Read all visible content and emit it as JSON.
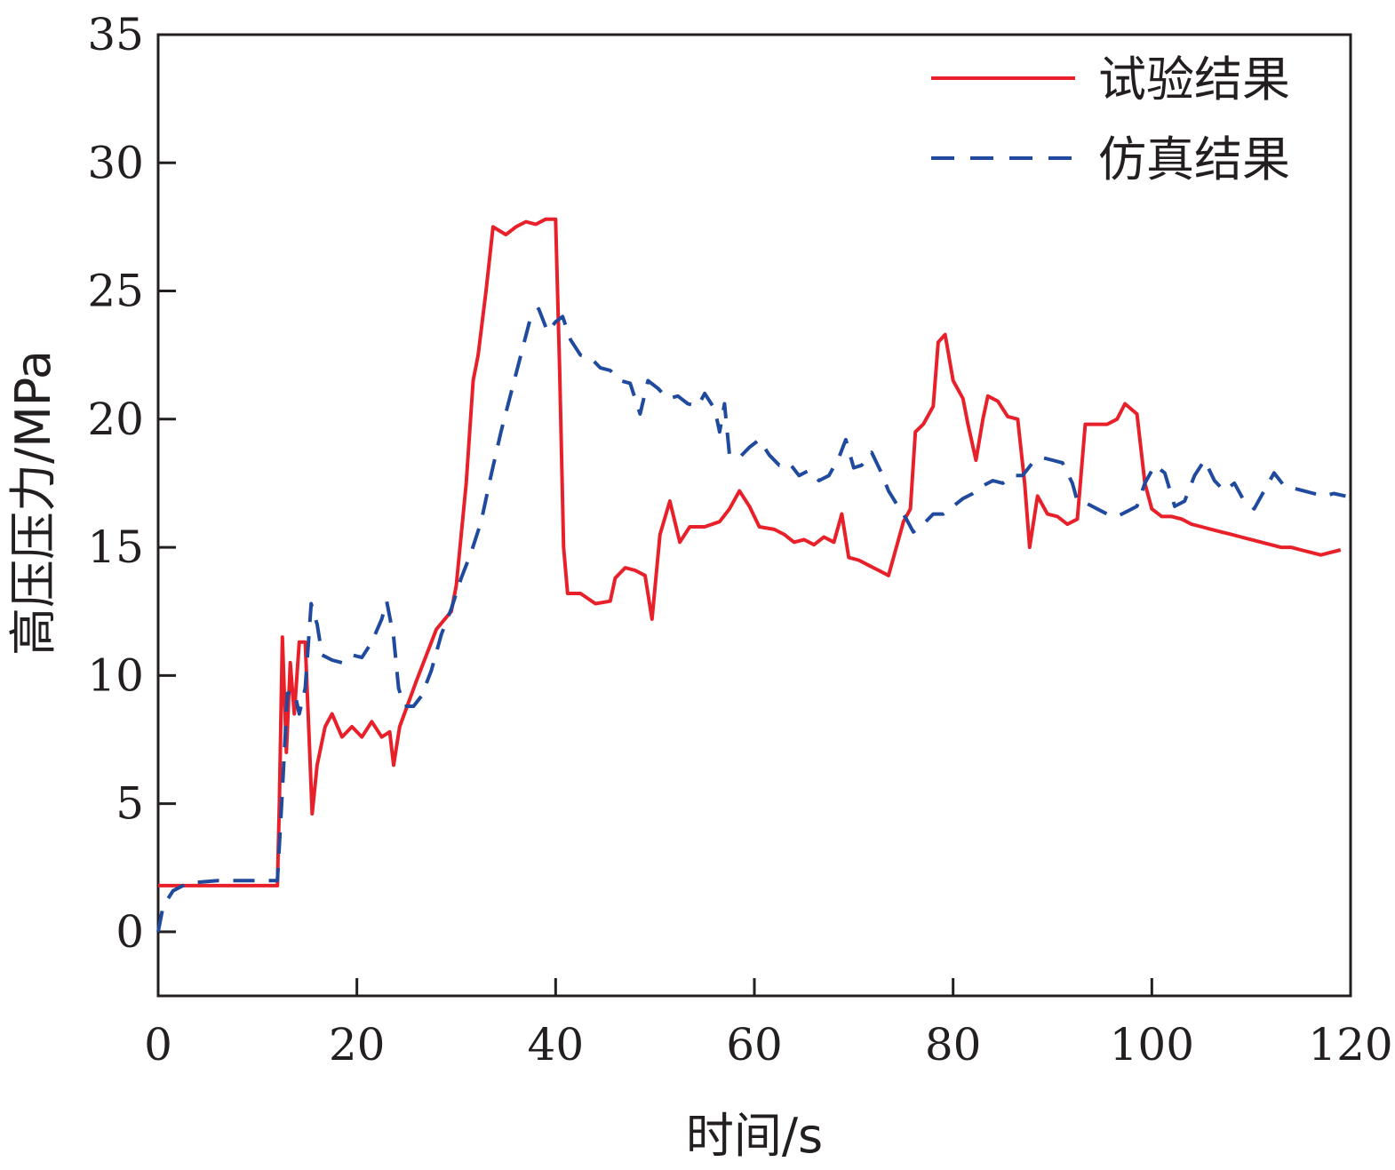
{
  "chart_data": {
    "type": "line",
    "title": "",
    "xlabel": "时间/s",
    "ylabel": "高压压力/MPa",
    "xlim": [
      0,
      120
    ],
    "ylim": [
      -2.5,
      35
    ],
    "xticks": [
      0,
      20,
      40,
      60,
      80,
      100,
      120
    ],
    "yticks": [
      0,
      5,
      10,
      15,
      20,
      25,
      30,
      35
    ],
    "grid": false,
    "legend_position": "top-right",
    "series": [
      {
        "name": "试验结果",
        "color": "#e8202a",
        "style": "solid",
        "points": [
          [
            0,
            1.8
          ],
          [
            6,
            1.8
          ],
          [
            12,
            1.8
          ],
          [
            12.2,
            5
          ],
          [
            12.5,
            11.5
          ],
          [
            12.9,
            7
          ],
          [
            13.3,
            10.5
          ],
          [
            13.7,
            8.5
          ],
          [
            14.2,
            11.3
          ],
          [
            14.8,
            11.3
          ],
          [
            15.2,
            7.5
          ],
          [
            15.5,
            4.6
          ],
          [
            16,
            6.5
          ],
          [
            16.8,
            8
          ],
          [
            17.5,
            8.5
          ],
          [
            18.5,
            7.6
          ],
          [
            19.5,
            8
          ],
          [
            20.5,
            7.6
          ],
          [
            21.5,
            8.2
          ],
          [
            22.5,
            7.6
          ],
          [
            23.3,
            7.8
          ],
          [
            23.7,
            6.5
          ],
          [
            24.3,
            8
          ],
          [
            26,
            9.8
          ],
          [
            28,
            11.8
          ],
          [
            29.5,
            12.5
          ],
          [
            30,
            13.5
          ],
          [
            31,
            17.5
          ],
          [
            31.7,
            21.5
          ],
          [
            32.2,
            22.5
          ],
          [
            33,
            25
          ],
          [
            33.7,
            27.5
          ],
          [
            35,
            27.2
          ],
          [
            36,
            27.5
          ],
          [
            37,
            27.7
          ],
          [
            38,
            27.6
          ],
          [
            39,
            27.8
          ],
          [
            40,
            27.8
          ],
          [
            40.4,
            22
          ],
          [
            40.8,
            15
          ],
          [
            41.2,
            13.2
          ],
          [
            42.5,
            13.2
          ],
          [
            44,
            12.8
          ],
          [
            45.5,
            12.9
          ],
          [
            46,
            13.8
          ],
          [
            47,
            14.2
          ],
          [
            48,
            14.1
          ],
          [
            49,
            13.9
          ],
          [
            49.7,
            12.2
          ],
          [
            50.5,
            15.5
          ],
          [
            51.5,
            16.8
          ],
          [
            52.5,
            15.2
          ],
          [
            53.5,
            15.8
          ],
          [
            55,
            15.8
          ],
          [
            56.5,
            16
          ],
          [
            57.5,
            16.5
          ],
          [
            58.5,
            17.2
          ],
          [
            59.5,
            16.6
          ],
          [
            60.5,
            15.8
          ],
          [
            62,
            15.7
          ],
          [
            63,
            15.5
          ],
          [
            64,
            15.2
          ],
          [
            65,
            15.3
          ],
          [
            66,
            15.1
          ],
          [
            67,
            15.4
          ],
          [
            68,
            15.2
          ],
          [
            68.8,
            16.3
          ],
          [
            69.5,
            14.6
          ],
          [
            70.5,
            14.5
          ],
          [
            71.5,
            14.3
          ],
          [
            72.5,
            14.1
          ],
          [
            73.5,
            13.9
          ],
          [
            74,
            14.6
          ],
          [
            75,
            16
          ],
          [
            75.7,
            16.5
          ],
          [
            76.2,
            19.5
          ],
          [
            77,
            19.8
          ],
          [
            78,
            20.5
          ],
          [
            78.5,
            23
          ],
          [
            79.2,
            23.3
          ],
          [
            80,
            21.5
          ],
          [
            81,
            20.8
          ],
          [
            81.5,
            19.8
          ],
          [
            82.3,
            18.4
          ],
          [
            83,
            20
          ],
          [
            83.5,
            20.9
          ],
          [
            84.5,
            20.7
          ],
          [
            85.5,
            20.1
          ],
          [
            86.5,
            20
          ],
          [
            87.2,
            17.5
          ],
          [
            87.7,
            15
          ],
          [
            88.5,
            17
          ],
          [
            89.5,
            16.3
          ],
          [
            90.5,
            16.2
          ],
          [
            91.5,
            15.9
          ],
          [
            92.5,
            16.1
          ],
          [
            93.3,
            19.8
          ],
          [
            94.5,
            19.8
          ],
          [
            95.5,
            19.8
          ],
          [
            96.5,
            20
          ],
          [
            97.3,
            20.6
          ],
          [
            98.5,
            20.2
          ],
          [
            99.3,
            17.5
          ],
          [
            100,
            16.5
          ],
          [
            101,
            16.2
          ],
          [
            102,
            16.2
          ],
          [
            103,
            16.1
          ],
          [
            104,
            15.9
          ],
          [
            105,
            15.8
          ],
          [
            106,
            15.7
          ],
          [
            107,
            15.6
          ],
          [
            108,
            15.5
          ],
          [
            109,
            15.4
          ],
          [
            110,
            15.3
          ],
          [
            111,
            15.2
          ],
          [
            112,
            15.1
          ],
          [
            113,
            15
          ],
          [
            114,
            15
          ],
          [
            115,
            14.9
          ],
          [
            116,
            14.8
          ],
          [
            117,
            14.7
          ],
          [
            118,
            14.8
          ],
          [
            119,
            14.9
          ]
        ]
      },
      {
        "name": "仿真结果",
        "color": "#1f4a9e",
        "style": "dashed",
        "points": [
          [
            0,
            0
          ],
          [
            0.5,
            1
          ],
          [
            1.5,
            1.6
          ],
          [
            3,
            1.9
          ],
          [
            6,
            2
          ],
          [
            9,
            2
          ],
          [
            12,
            2
          ],
          [
            12.5,
            5.5
          ],
          [
            13,
            9.3
          ],
          [
            13.7,
            9.4
          ],
          [
            14.2,
            8.5
          ],
          [
            14.8,
            9.5
          ],
          [
            15.4,
            12.8
          ],
          [
            16,
            12
          ],
          [
            16.5,
            10.8
          ],
          [
            17.5,
            10.6
          ],
          [
            18.5,
            10.5
          ],
          [
            19.5,
            10.8
          ],
          [
            20.5,
            10.7
          ],
          [
            21.5,
            11.3
          ],
          [
            22.5,
            12.2
          ],
          [
            23,
            12.9
          ],
          [
            23.7,
            11.5
          ],
          [
            24.2,
            9.5
          ],
          [
            24.8,
            8.8
          ],
          [
            25.7,
            8.8
          ],
          [
            26.5,
            9.2
          ],
          [
            27.5,
            10.2
          ],
          [
            28.5,
            11.6
          ],
          [
            29.5,
            12.6
          ],
          [
            30.5,
            13.8
          ],
          [
            31.5,
            14.8
          ],
          [
            32.5,
            16
          ],
          [
            33.5,
            17.8
          ],
          [
            34.5,
            19.5
          ],
          [
            35.5,
            21
          ],
          [
            36.5,
            22.5
          ],
          [
            37.5,
            24
          ],
          [
            38.3,
            24.3
          ],
          [
            39.2,
            23.4
          ],
          [
            40,
            23.8
          ],
          [
            40.7,
            24
          ],
          [
            41.5,
            23.1
          ],
          [
            42.5,
            22.5
          ],
          [
            43.5,
            22.4
          ],
          [
            44.5,
            22
          ],
          [
            45.5,
            21.9
          ],
          [
            46.5,
            21.5
          ],
          [
            47.5,
            21.4
          ],
          [
            48.5,
            20.2
          ],
          [
            49.3,
            21.5
          ],
          [
            50.3,
            21.2
          ],
          [
            51.3,
            20.8
          ],
          [
            52.3,
            20.9
          ],
          [
            53.3,
            20.6
          ],
          [
            54.3,
            20.5
          ],
          [
            55,
            21
          ],
          [
            56,
            20.4
          ],
          [
            56.5,
            19.5
          ],
          [
            57,
            20.6
          ],
          [
            57.5,
            18.6
          ],
          [
            58.5,
            18.5
          ],
          [
            59.5,
            18.9
          ],
          [
            60.5,
            19.2
          ],
          [
            61.5,
            18.6
          ],
          [
            62.5,
            18.2
          ],
          [
            63.5,
            18.3
          ],
          [
            64.5,
            17.8
          ],
          [
            65.5,
            18
          ],
          [
            66.5,
            17.6
          ],
          [
            67.5,
            17.8
          ],
          [
            68.5,
            18.5
          ],
          [
            69.2,
            19.2
          ],
          [
            70,
            18.1
          ],
          [
            70.8,
            18.2
          ],
          [
            71.8,
            18.7
          ],
          [
            72.8,
            17.9
          ],
          [
            73.5,
            17.2
          ],
          [
            74.3,
            16.7
          ],
          [
            75.3,
            16.1
          ],
          [
            76,
            15.6
          ],
          [
            77,
            15.9
          ],
          [
            78,
            16.3
          ],
          [
            79,
            16.3
          ],
          [
            80,
            16.6
          ],
          [
            81,
            16.9
          ],
          [
            82,
            17.1
          ],
          [
            83,
            17.4
          ],
          [
            84,
            17.6
          ],
          [
            85,
            17.5
          ],
          [
            86,
            17.8
          ],
          [
            87,
            17.8
          ],
          [
            88,
            18.3
          ],
          [
            89,
            18.5
          ],
          [
            90,
            18.4
          ],
          [
            91,
            18.3
          ],
          [
            92,
            17.5
          ],
          [
            92.5,
            16.8
          ],
          [
            93.5,
            16.7
          ],
          [
            94.5,
            16.5
          ],
          [
            95.5,
            16.3
          ],
          [
            96.5,
            16.2
          ],
          [
            97.5,
            16.4
          ],
          [
            98.5,
            16.6
          ],
          [
            99.3,
            17.5
          ],
          [
            100.3,
            18.2
          ],
          [
            101.3,
            17.9
          ],
          [
            102.3,
            16.6
          ],
          [
            103.3,
            16.8
          ],
          [
            104.3,
            17.8
          ],
          [
            105.3,
            18.4
          ],
          [
            106.3,
            17.6
          ],
          [
            107.3,
            17.2
          ],
          [
            108.3,
            17.5
          ],
          [
            109.3,
            16.8
          ],
          [
            110.3,
            16.5
          ],
          [
            111.3,
            17.2
          ],
          [
            112.3,
            17.9
          ],
          [
            113.3,
            17.4
          ],
          [
            114.3,
            17.3
          ],
          [
            115.3,
            17.2
          ],
          [
            116.3,
            17.1
          ],
          [
            117.3,
            17
          ],
          [
            118.3,
            17.1
          ],
          [
            119.5,
            17
          ]
        ]
      }
    ]
  }
}
